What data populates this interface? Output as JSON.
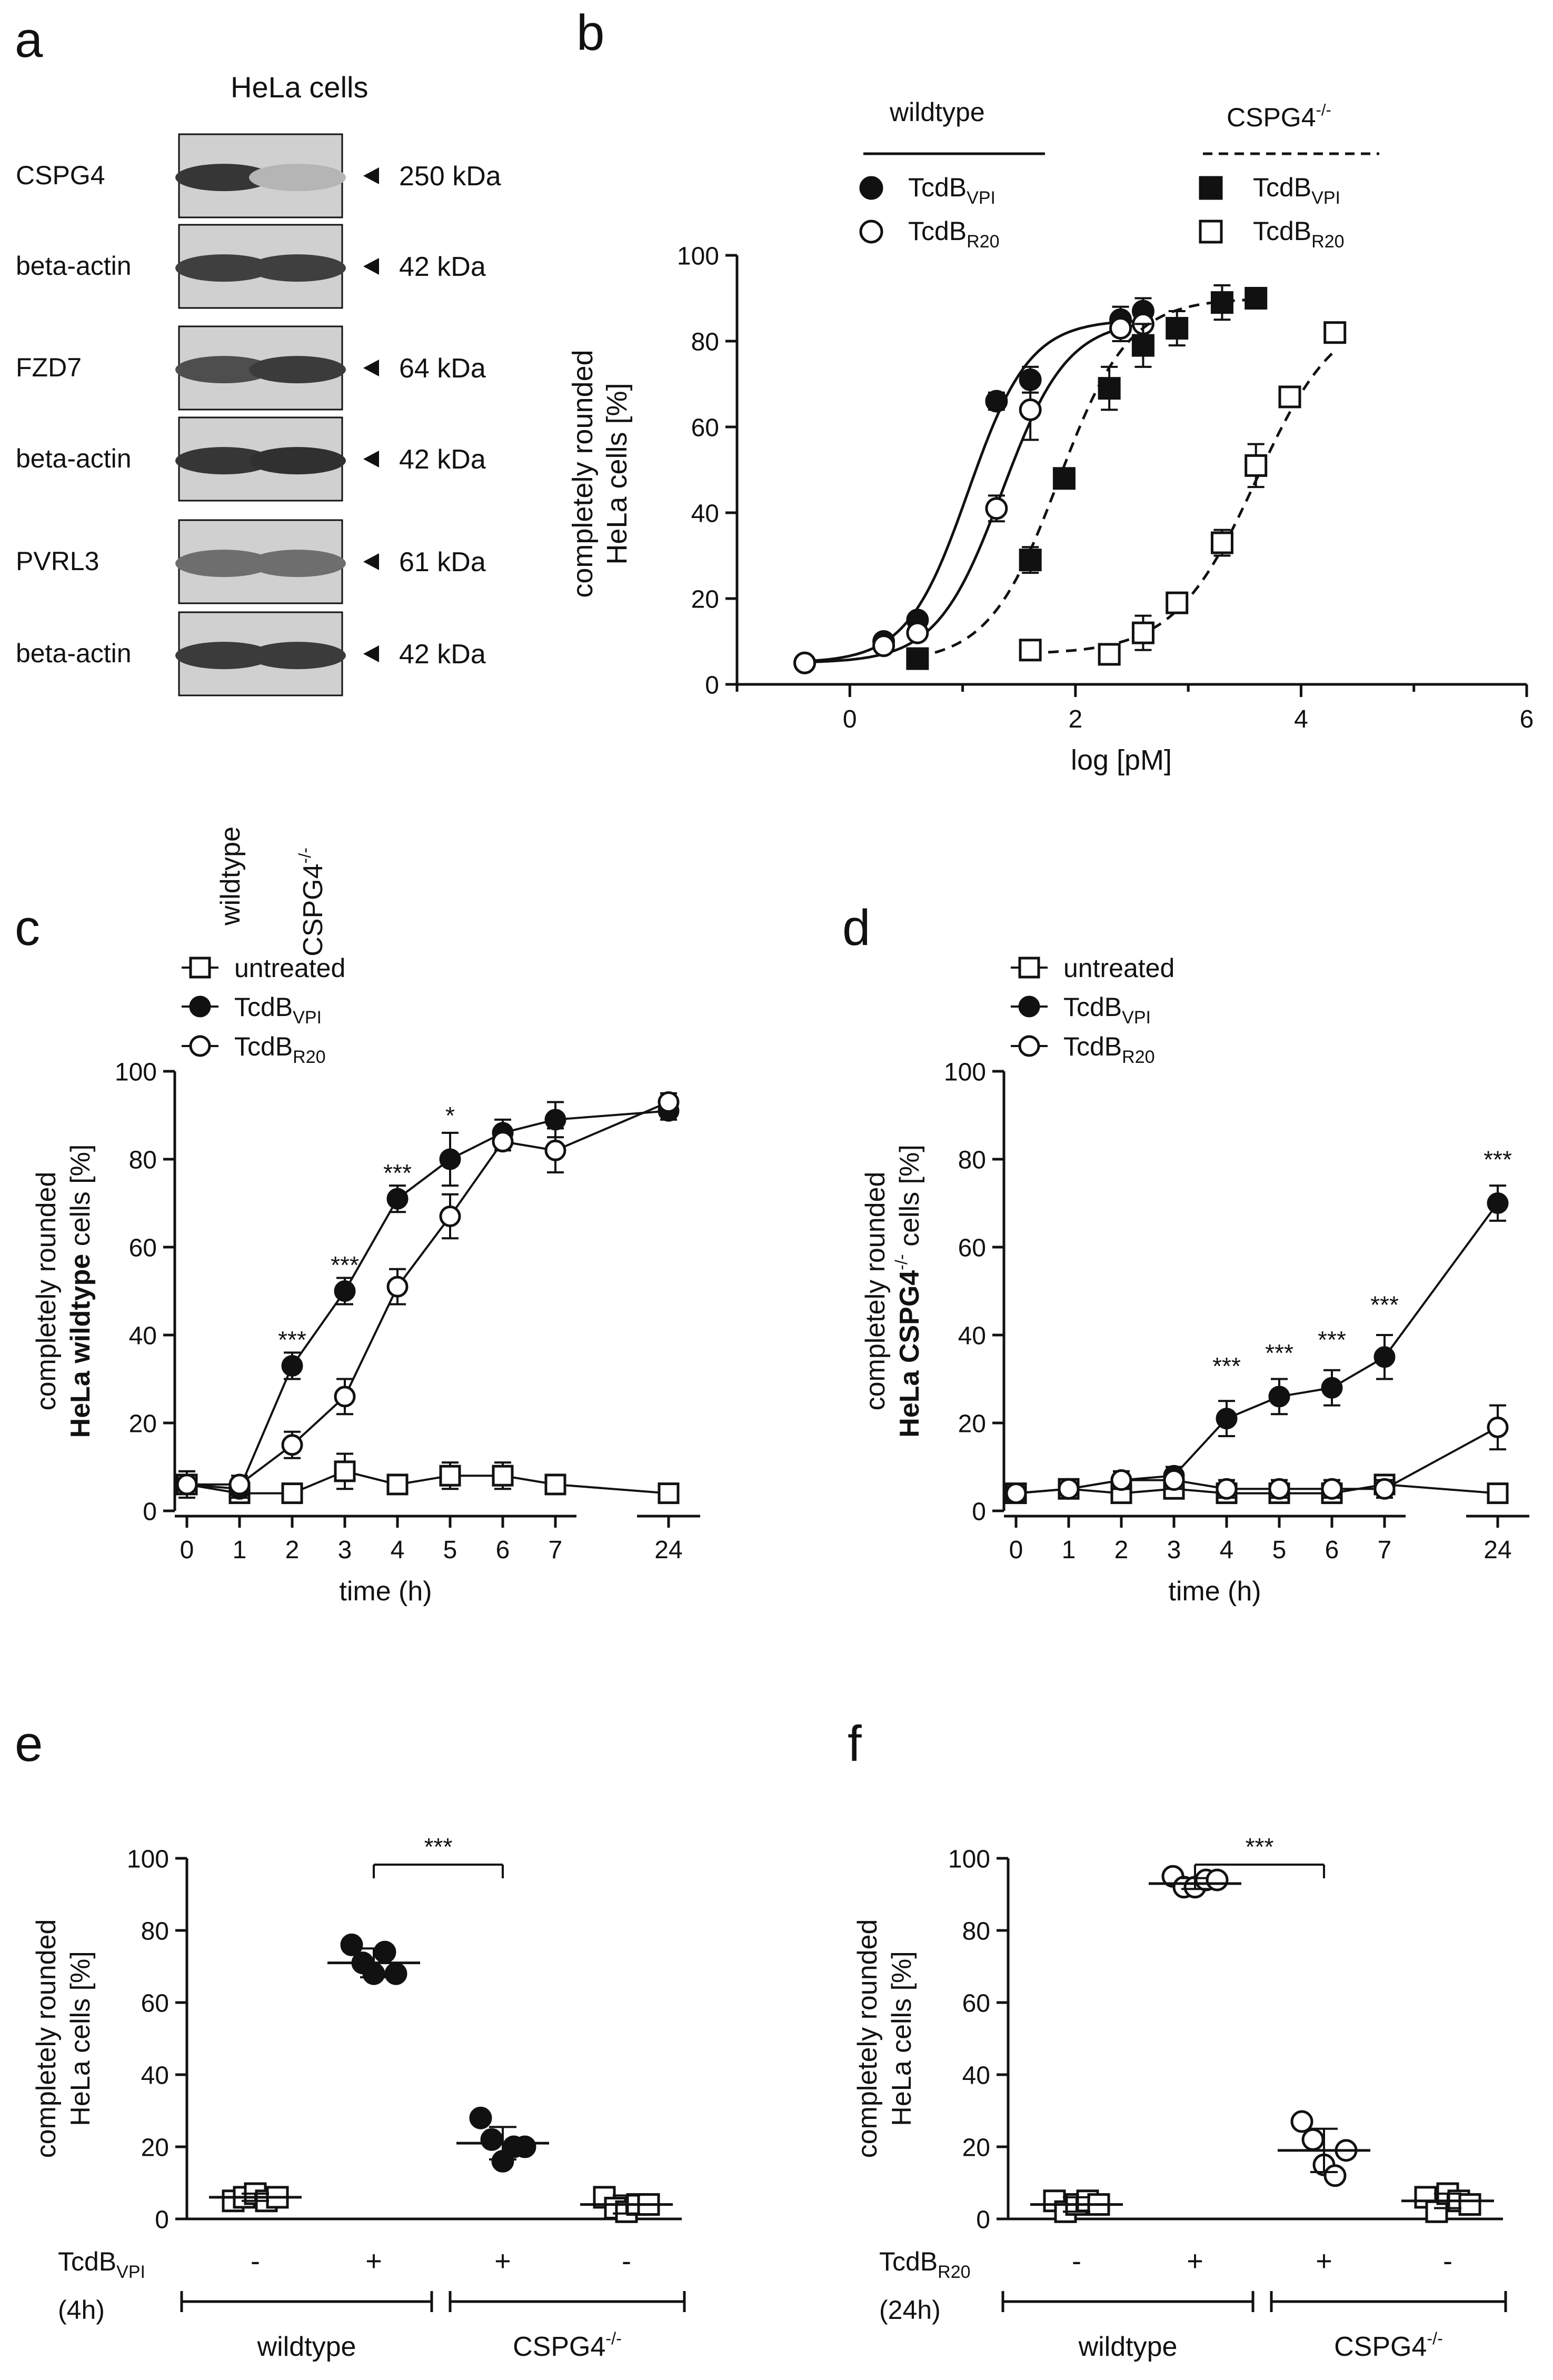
{
  "colors": {
    "ink": "#111111",
    "band_dark": "#1e1e1e",
    "blot_bg": "#d0d0d0"
  },
  "panel_a": {
    "letter": "a",
    "header": "HeLa cells",
    "blots": [
      {
        "protein": "CSPG4",
        "size": "250 kDa",
        "bands": [
          0.85,
          0.18
        ]
      },
      {
        "protein": "beta-actin",
        "size": "42 kDa",
        "bands": [
          0.8,
          0.8
        ]
      },
      {
        "protein": "FZD7",
        "size": "64 kDa",
        "bands": [
          0.72,
          0.82
        ]
      },
      {
        "protein": "beta-actin",
        "size": "42 kDa",
        "bands": [
          0.85,
          0.88
        ]
      },
      {
        "protein": "PVRL3",
        "size": "61 kDa",
        "bands": [
          0.55,
          0.55
        ]
      },
      {
        "protein": "beta-actin",
        "size": "42 kDa",
        "bands": [
          0.82,
          0.82
        ]
      }
    ],
    "lanes": [
      "wildtype",
      "CSPG4"
    ],
    "lane_sup": "-/-"
  },
  "chart_data": [
    {
      "id": "b",
      "type": "scatter",
      "letter": "b",
      "ylabel": [
        "completely rounded",
        "HeLa cells [%]"
      ],
      "xlabel": "log [pM]",
      "xlim": [
        -1,
        6
      ],
      "ylim": [
        0,
        100
      ],
      "xticks": [
        "0",
        "2",
        "4",
        "6"
      ],
      "yticks": [
        "0",
        "20",
        "40",
        "60",
        "80",
        "100"
      ],
      "legend": {
        "wt_title": "wildtype",
        "ko_title": "CSPG4",
        "ko_sup": "-/-",
        "label_main": "TcdB",
        "vpi_sub": "VPI",
        "r20_sub": "R20"
      },
      "series": [
        {
          "name": "wildtype TcdB VPI",
          "marker": "circle-filled",
          "line": "solid",
          "x": [
            -0.4,
            0.3,
            0.6,
            1.3,
            1.6,
            2.4,
            2.6
          ],
          "y": [
            5,
            10,
            15,
            66,
            71,
            85,
            87
          ],
          "err": [
            0,
            0,
            1,
            2,
            3,
            3,
            3
          ],
          "fit": {
            "bottom": 5,
            "top": 85,
            "ec50": 1.05,
            "slope": 1.6,
            "from": -0.4,
            "to": 2.6
          }
        },
        {
          "name": "wildtype TcdB R20",
          "marker": "circle-open",
          "line": "solid",
          "x": [
            -0.4,
            0.3,
            0.6,
            1.3,
            1.6,
            2.4,
            2.6
          ],
          "y": [
            5,
            9,
            12,
            41,
            64,
            83,
            84
          ],
          "err": [
            0,
            0,
            1,
            3,
            7,
            3,
            4
          ],
          "fit": {
            "bottom": 5,
            "top": 85,
            "ec50": 1.35,
            "slope": 1.5,
            "from": -0.4,
            "to": 2.6
          }
        },
        {
          "name": "CSPG4-/- TcdB VPI",
          "marker": "square-filled",
          "line": "dashed",
          "x": [
            0.6,
            1.6,
            1.9,
            2.3,
            2.6,
            2.9,
            3.3,
            3.6
          ],
          "y": [
            6,
            29,
            48,
            69,
            79,
            83,
            89,
            90
          ],
          "err": [
            0,
            3,
            0,
            5,
            5,
            4,
            4,
            0
          ],
          "fit": {
            "bottom": 5,
            "top": 90,
            "ec50": 1.85,
            "slope": 1.4,
            "from": 0.6,
            "to": 3.6
          }
        },
        {
          "name": "CSPG4-/- TcdB R20",
          "marker": "square-open",
          "line": "dashed",
          "x": [
            1.6,
            2.3,
            2.6,
            2.9,
            3.3,
            3.6,
            3.9,
            4.3
          ],
          "y": [
            8,
            7,
            12,
            19,
            33,
            51,
            67,
            82
          ],
          "err": [
            0,
            2,
            4,
            2,
            3,
            5,
            0,
            0
          ],
          "fit": {
            "bottom": 7,
            "top": 88,
            "ec50": 3.6,
            "slope": 1.2,
            "from": 1.6,
            "to": 4.3
          }
        }
      ]
    },
    {
      "id": "c",
      "type": "line",
      "letter": "c",
      "ylabel": [
        "completely rounded"
      ],
      "ylabel_bold": "HeLa wildtype",
      "ylabel_after": " cells [%]",
      "xlabel": "time (h)",
      "xticks": [
        "0",
        "1",
        "2",
        "3",
        "4",
        "5",
        "6",
        "7",
        "24"
      ],
      "yticks": [
        "0",
        "20",
        "40",
        "60",
        "80",
        "100"
      ],
      "ylim": [
        0,
        100
      ],
      "legend": {
        "untreated": "untreated",
        "label_main": "TcdB",
        "vpi_sub": "VPI",
        "r20_sub": "R20"
      },
      "series": [
        {
          "name": "untreated",
          "marker": "square-open",
          "y": [
            6,
            4,
            4,
            9,
            6,
            8,
            8,
            6,
            4
          ],
          "err": [
            3,
            1,
            1,
            4,
            2,
            3,
            3,
            2,
            2
          ]
        },
        {
          "name": "TcdB VPI",
          "marker": "circle-filled",
          "y": [
            6,
            5,
            33,
            50,
            71,
            80,
            86,
            89,
            91
          ],
          "err": [
            3,
            2,
            3,
            3,
            3,
            6,
            3,
            4,
            2
          ]
        },
        {
          "name": "TcdB R20",
          "marker": "circle-open",
          "y": [
            6,
            6,
            15,
            26,
            51,
            67,
            84,
            82,
            93
          ],
          "err": [
            3,
            2,
            3,
            4,
            4,
            5,
            2,
            5,
            2
          ]
        }
      ],
      "annotations": [
        {
          "x_index": 2,
          "text": "***",
          "y": 37
        },
        {
          "x_index": 3,
          "text": "***",
          "y": 54
        },
        {
          "x_index": 4,
          "text": "***",
          "y": 75
        },
        {
          "x_index": 5,
          "text": "*",
          "y": 88
        }
      ]
    },
    {
      "id": "d",
      "type": "line",
      "letter": "d",
      "ylabel": [
        "completely rounded"
      ],
      "ylabel_bold": "HeLa CSPG4",
      "ylabel_sup": "-/-",
      "ylabel_after": " cells [%]",
      "xlabel": "time (h)",
      "xticks": [
        "0",
        "1",
        "2",
        "3",
        "4",
        "5",
        "6",
        "7",
        "24"
      ],
      "yticks": [
        "0",
        "20",
        "40",
        "60",
        "80",
        "100"
      ],
      "ylim": [
        0,
        100
      ],
      "legend": {
        "untreated": "untreated",
        "label_main": "TcdB",
        "vpi_sub": "VPI",
        "r20_sub": "R20"
      },
      "series": [
        {
          "name": "untreated",
          "marker": "square-open",
          "y": [
            4,
            5,
            4,
            5,
            4,
            4,
            4,
            6,
            4
          ],
          "err": [
            2,
            1,
            2,
            2,
            2,
            2,
            2,
            2,
            2
          ]
        },
        {
          "name": "TcdB VPI",
          "marker": "circle-filled",
          "y": [
            4,
            5,
            7,
            8,
            21,
            26,
            28,
            35,
            70
          ],
          "err": [
            2,
            1,
            2,
            2,
            4,
            4,
            4,
            5,
            4
          ]
        },
        {
          "name": "TcdB R20",
          "marker": "circle-open",
          "y": [
            4,
            5,
            7,
            7,
            5,
            5,
            5,
            5,
            19
          ],
          "err": [
            2,
            1,
            2,
            2,
            2,
            2,
            2,
            2,
            5
          ]
        }
      ],
      "annotations": [
        {
          "x_index": 4,
          "text": "***",
          "y": 31
        },
        {
          "x_index": 5,
          "text": "***",
          "y": 34
        },
        {
          "x_index": 6,
          "text": "***",
          "y": 37
        },
        {
          "x_index": 7,
          "text": "***",
          "y": 45
        },
        {
          "x_index": 8,
          "text": "***",
          "y": 78
        }
      ]
    },
    {
      "id": "e",
      "type": "scatter",
      "letter": "e",
      "ylabel": [
        "completely rounded",
        "HeLa cells [%]"
      ],
      "yticks": [
        "0",
        "20",
        "40",
        "60",
        "80",
        "100"
      ],
      "ylim": [
        0,
        100
      ],
      "treatment": {
        "main": "TcdB",
        "sub": "VPI",
        "time": "(4h)"
      },
      "signs": [
        "-",
        "+",
        "+",
        "-"
      ],
      "groups": [
        {
          "label": "wildtype"
        },
        {
          "label": "CSPG4",
          "sup": "-/-"
        }
      ],
      "sig": "***",
      "columns": [
        {
          "marker": "square-open",
          "points": [
            5,
            6,
            7,
            5,
            6
          ],
          "mean": 6,
          "sd": 1
        },
        {
          "marker": "circle-filled",
          "points": [
            76,
            71,
            68,
            74,
            68
          ],
          "mean": 71,
          "sd": 4
        },
        {
          "marker": "circle-filled",
          "points": [
            28,
            22,
            16,
            20,
            20
          ],
          "mean": 21,
          "sd": 4.5
        },
        {
          "marker": "square-open",
          "points": [
            6,
            3,
            2,
            4,
            4
          ],
          "mean": 4,
          "sd": 2.5
        }
      ]
    },
    {
      "id": "f",
      "type": "scatter",
      "letter": "f",
      "ylabel": [
        "completely rounded",
        "HeLa cells [%]"
      ],
      "yticks": [
        "0",
        "20",
        "40",
        "60",
        "80",
        "100"
      ],
      "ylim": [
        0,
        100
      ],
      "treatment": {
        "main": "TcdB",
        "sub": "R20",
        "time": "(24h)"
      },
      "signs": [
        "-",
        "+",
        "+",
        "-"
      ],
      "groups": [
        {
          "label": "wildtype"
        },
        {
          "label": "CSPG4",
          "sup": "-/-"
        }
      ],
      "sig": "***",
      "columns": [
        {
          "marker": "square-open",
          "points": [
            5,
            2,
            4,
            5,
            4
          ],
          "mean": 4,
          "sd": 2
        },
        {
          "marker": "circle-open",
          "points": [
            95,
            92,
            92,
            94,
            94
          ],
          "mean": 93,
          "sd": 1.5
        },
        {
          "marker": "circle-open",
          "points": [
            27,
            22,
            15,
            12,
            19
          ],
          "mean": 19,
          "sd": 6
        },
        {
          "marker": "square-open",
          "points": [
            6,
            2,
            7,
            5,
            4
          ],
          "mean": 5,
          "sd": 2
        }
      ]
    }
  ]
}
